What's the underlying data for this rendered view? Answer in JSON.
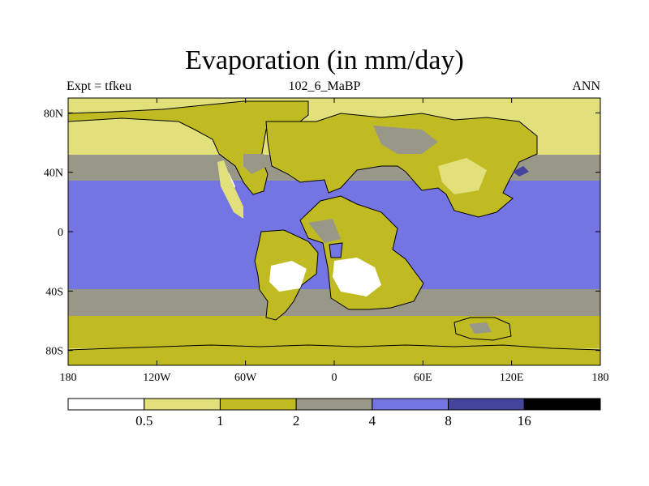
{
  "title": "Evaporation (in mm/day)",
  "subtitle_left": "Expt = tfkeu",
  "subtitle_center": "102_6_MaBP",
  "subtitle_right": "ANN",
  "map": {
    "lon_range": [
      -180,
      180
    ],
    "lat_range": [
      -90,
      90
    ],
    "x_ticks": [
      {
        "lon": -180,
        "label": "180"
      },
      {
        "lon": -120,
        "label": "120W"
      },
      {
        "lon": -60,
        "label": "60W"
      },
      {
        "lon": 0,
        "label": "0"
      },
      {
        "lon": 60,
        "label": "60E"
      },
      {
        "lon": 120,
        "label": "120E"
      },
      {
        "lon": 180,
        "label": "180"
      }
    ],
    "y_ticks": [
      {
        "lat": 80,
        "label": "80N"
      },
      {
        "lat": 40,
        "label": "40N"
      },
      {
        "lat": 0,
        "label": "0"
      },
      {
        "lat": -40,
        "label": "40S"
      },
      {
        "lat": -80,
        "label": "80S"
      }
    ]
  },
  "colorbar": {
    "bins": [
      {
        "color": "#ffffff"
      },
      {
        "color": "#e1e07a"
      },
      {
        "color": "#c0bb22"
      },
      {
        "color": "#999788"
      },
      {
        "color": "#7474e2"
      },
      {
        "color": "#44449a"
      },
      {
        "color": "#000000"
      }
    ],
    "labels": [
      "0.5",
      "1",
      "2",
      "4",
      "8",
      "16"
    ]
  },
  "colors": {
    "ocean_high": "#7474e2",
    "ocean_mid": "#999788",
    "ocean_low": "#c0bb22",
    "polar": "#e1e07a",
    "desert": "#ffffff",
    "intense": "#44449a"
  }
}
